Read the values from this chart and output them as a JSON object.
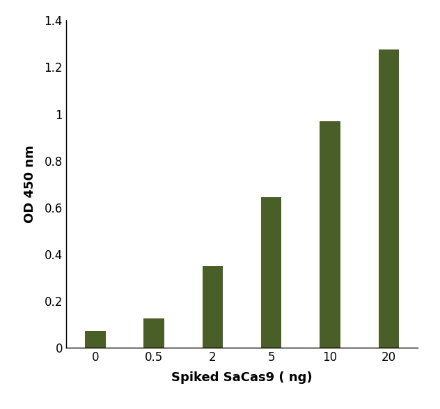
{
  "categories": [
    "0",
    "0.5",
    "2",
    "5",
    "10",
    "20"
  ],
  "values": [
    0.07,
    0.125,
    0.35,
    0.645,
    0.97,
    1.275
  ],
  "bar_color": "#4a5e28",
  "xlabel": "Spiked SaCas9 ( ng)",
  "ylabel": "OD 450 nm",
  "ylim": [
    0,
    1.4
  ],
  "yticks": [
    0,
    0.2,
    0.4,
    0.6,
    0.8,
    1.0,
    1.2,
    1.4
  ],
  "xlabel_fontsize": 13,
  "ylabel_fontsize": 13,
  "tick_fontsize": 12,
  "bar_width": 0.35,
  "background_color": "#ffffff"
}
